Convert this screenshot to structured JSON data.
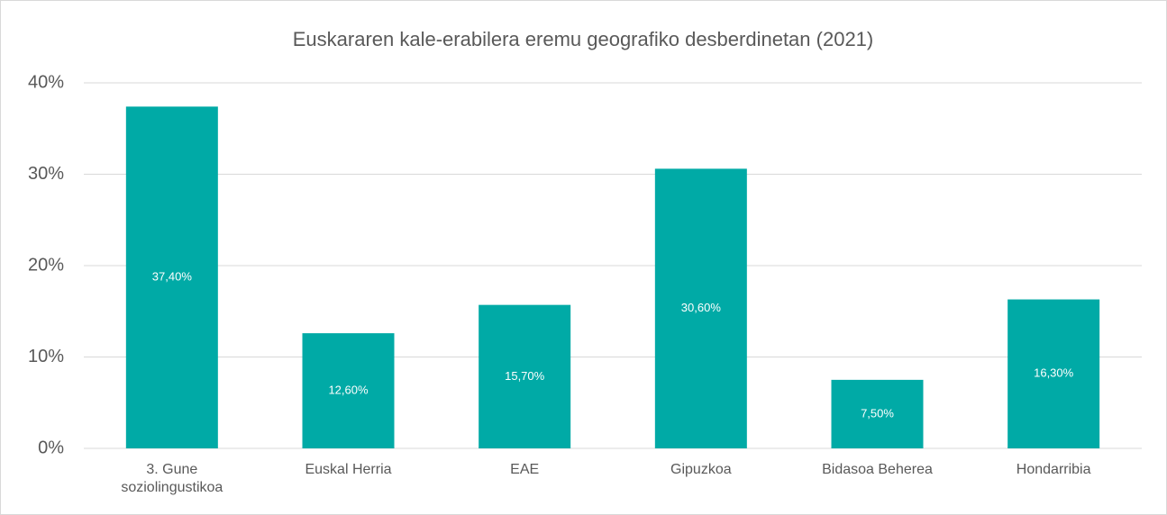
{
  "chart_data": {
    "type": "bar",
    "title": "Euskararen kale-erabilera eremu geografiko desberdinetan (2021)",
    "categories": [
      "3. Gune soziolingustikoa",
      "Euskal Herria",
      "EAE",
      "Gipuzkoa",
      "Bidasoa Beherea",
      "Hondarribia"
    ],
    "values": [
      37.4,
      12.6,
      15.7,
      30.6,
      7.5,
      16.3
    ],
    "value_labels": [
      "37,40%",
      "12,60%",
      "15,70%",
      "30,60%",
      "7,50%",
      "16,30%"
    ],
    "color": "#00aaa6",
    "ylim": [
      0,
      40
    ],
    "yticks": [
      {
        "value": 0,
        "label": "0%"
      },
      {
        "value": 10,
        "label": "10%"
      },
      {
        "value": 20,
        "label": "20%"
      },
      {
        "value": 30,
        "label": "30%"
      },
      {
        "value": 40,
        "label": "40%"
      }
    ],
    "grid": true
  }
}
